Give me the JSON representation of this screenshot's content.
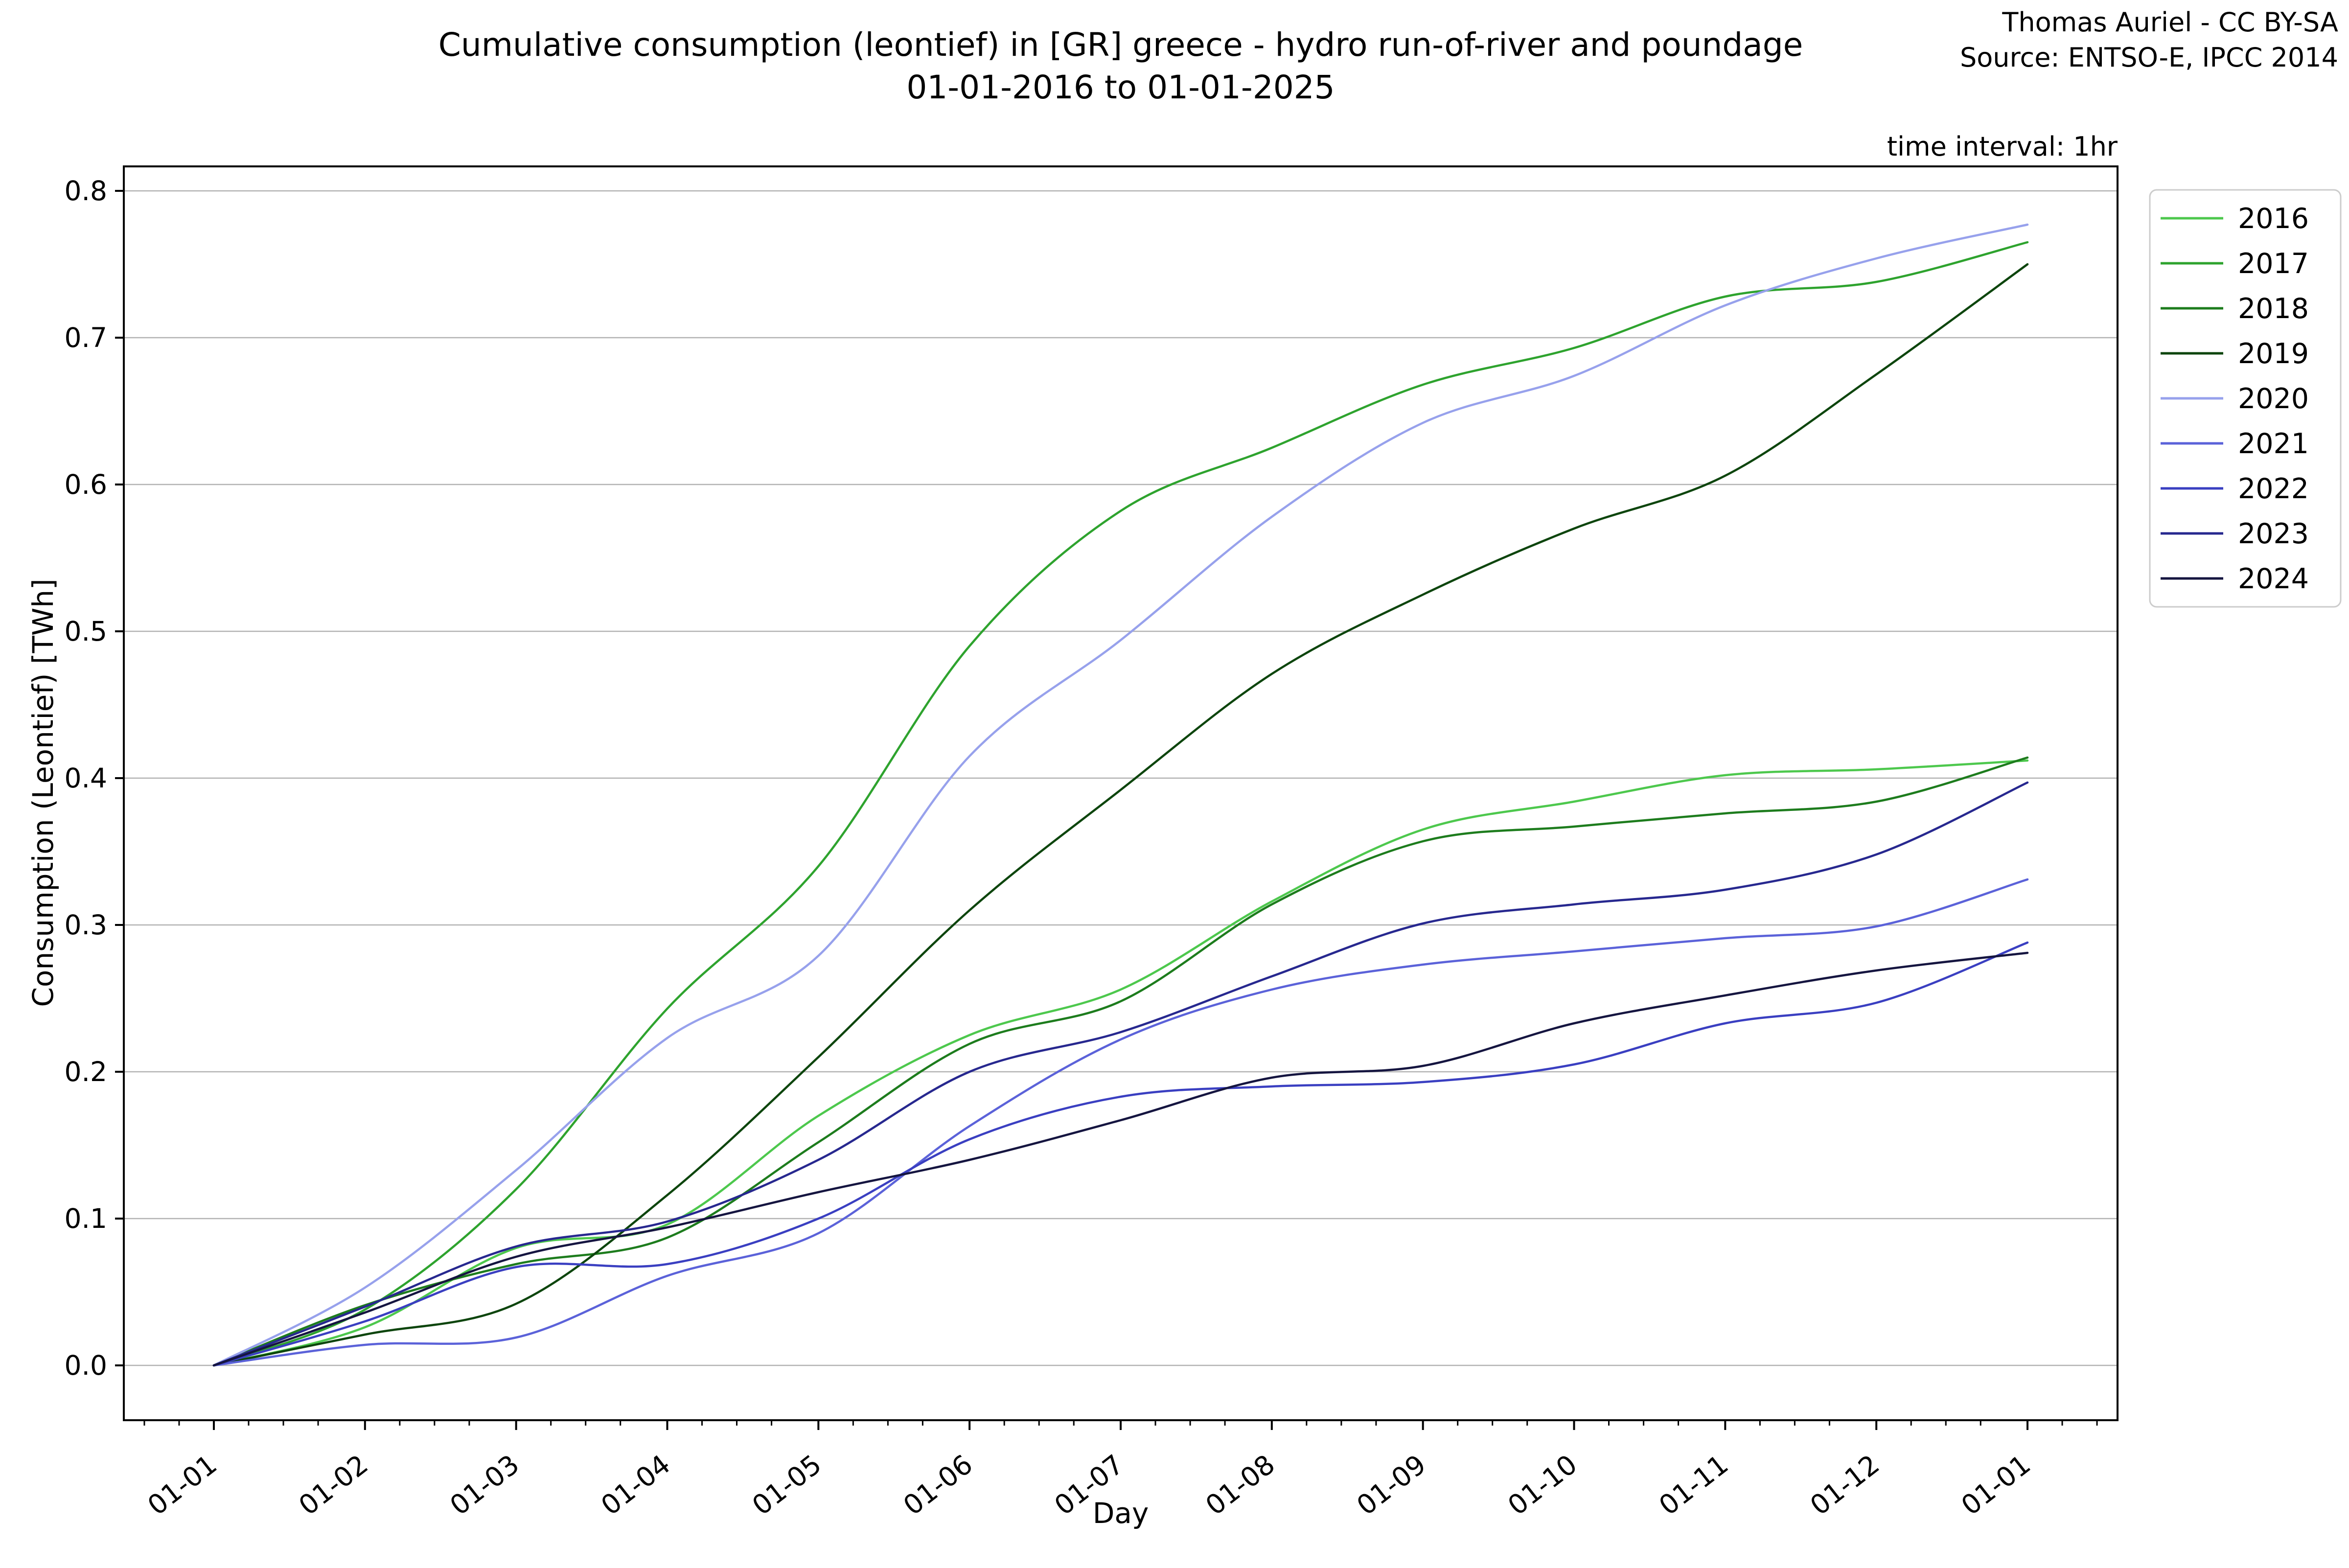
{
  "header": {
    "title_line1": "Cumulative consumption (leontief) in [GR] greece - hydro run-of-river and poundage",
    "title_line2": "01-01-2016 to 01-01-2025",
    "credit": "Thomas Auriel - CC BY-SA",
    "source": "Source: ENTSO-E, IPCC 2014",
    "time_interval": "time interval: 1hr"
  },
  "chart_data": {
    "type": "line",
    "title": "Cumulative consumption (leontief) in [GR] greece - hydro run-of-river and poundage 01-01-2016 to 01-01-2025",
    "xlabel": "Day",
    "ylabel": "Consumption (Leontief) [TWh]",
    "x_tick_labels": [
      "01-01",
      "01-02",
      "01-03",
      "01-04",
      "01-05",
      "01-06",
      "01-07",
      "01-08",
      "01-09",
      "01-10",
      "01-11",
      "01-12",
      "01-01"
    ],
    "x_months": [
      0,
      1,
      2,
      3,
      4,
      5,
      6,
      7,
      8,
      9,
      10,
      11,
      12
    ],
    "y_ticks": [
      0.0,
      0.1,
      0.2,
      0.3,
      0.4,
      0.5,
      0.6,
      0.7,
      0.8
    ],
    "y_tick_labels": [
      "0.0",
      "0.1",
      "0.2",
      "0.3",
      "0.4",
      "0.5",
      "0.6",
      "0.7",
      "0.8"
    ],
    "ylim": [
      -0.037,
      0.817
    ],
    "grid": true,
    "legend_position": "upper right",
    "legend_title": "",
    "units": "TWh",
    "series": [
      {
        "name": "2016",
        "color": "#4dc84d",
        "values": [
          0,
          0.026,
          0.08,
          0.096,
          0.17,
          0.225,
          0.256,
          0.316,
          0.365,
          0.384,
          0.402,
          0.406,
          0.412
        ]
      },
      {
        "name": "2017",
        "color": "#2ea32e",
        "values": [
          0,
          0.038,
          0.12,
          0.243,
          0.34,
          0.49,
          0.582,
          0.625,
          0.668,
          0.693,
          0.728,
          0.738,
          0.765
        ]
      },
      {
        "name": "2018",
        "color": "#1d7c1d",
        "values": [
          0,
          0.041,
          0.069,
          0.087,
          0.152,
          0.219,
          0.248,
          0.314,
          0.357,
          0.367,
          0.376,
          0.384,
          0.414
        ]
      },
      {
        "name": "2019",
        "color": "#0d450d",
        "values": [
          0,
          0.021,
          0.042,
          0.116,
          0.21,
          0.31,
          0.392,
          0.471,
          0.525,
          0.57,
          0.606,
          0.675,
          0.75
        ]
      },
      {
        "name": "2020",
        "color": "#97a1ec",
        "values": [
          0,
          0.053,
          0.133,
          0.223,
          0.279,
          0.415,
          0.494,
          0.578,
          0.642,
          0.674,
          0.722,
          0.754,
          0.777
        ]
      },
      {
        "name": "2021",
        "color": "#5b62d9",
        "values": [
          0,
          0.014,
          0.019,
          0.061,
          0.09,
          0.163,
          0.222,
          0.256,
          0.273,
          0.282,
          0.291,
          0.299,
          0.331
        ]
      },
      {
        "name": "2022",
        "color": "#3a3fc1",
        "values": [
          0,
          0.03,
          0.067,
          0.069,
          0.1,
          0.154,
          0.183,
          0.19,
          0.193,
          0.205,
          0.233,
          0.247,
          0.288
        ]
      },
      {
        "name": "2023",
        "color": "#27288f",
        "values": [
          0,
          0.04,
          0.081,
          0.098,
          0.14,
          0.2,
          0.227,
          0.265,
          0.301,
          0.314,
          0.324,
          0.348,
          0.397
        ]
      },
      {
        "name": "2024",
        "color": "#151540",
        "values": [
          0,
          0.036,
          0.074,
          0.094,
          0.118,
          0.14,
          0.167,
          0.196,
          0.204,
          0.233,
          0.252,
          0.269,
          0.281
        ]
      }
    ],
    "style": {
      "grid_color": "#b3b3b3",
      "spine_color": "#000000",
      "legend_border_color": "#cccccc",
      "background": "#ffffff"
    }
  }
}
